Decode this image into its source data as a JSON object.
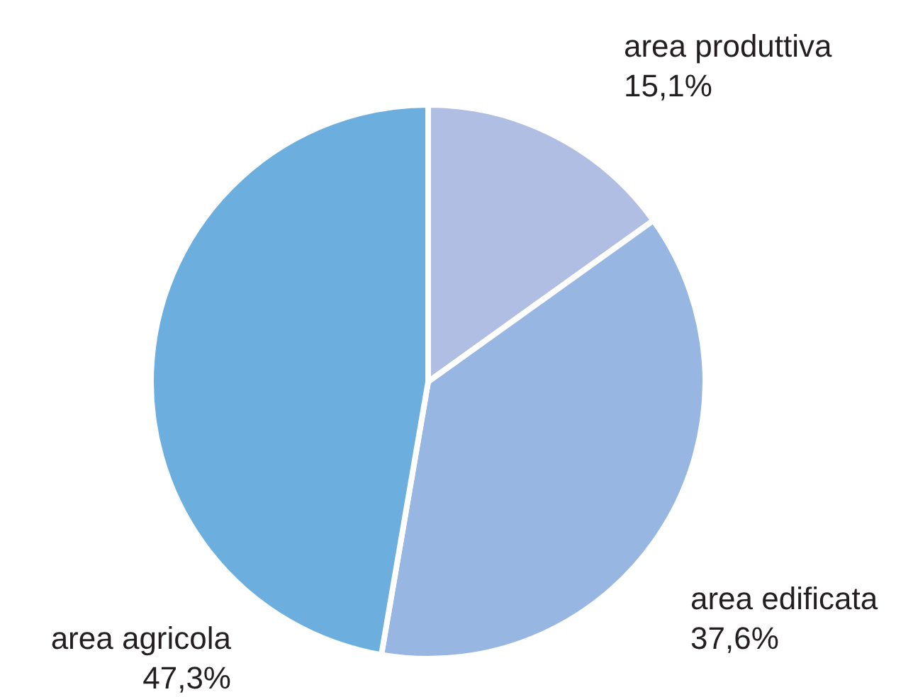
{
  "chart_data": {
    "type": "pie",
    "categories": [
      "area produttiva",
      "area edificata",
      "area agricola"
    ],
    "values": [
      15.1,
      37.6,
      47.3
    ],
    "colors": [
      "#b1bee3",
      "#98b6e2",
      "#6caede"
    ],
    "value_labels": [
      "15,1%",
      "37,6%",
      "47,3%"
    ],
    "legend": false
  }
}
